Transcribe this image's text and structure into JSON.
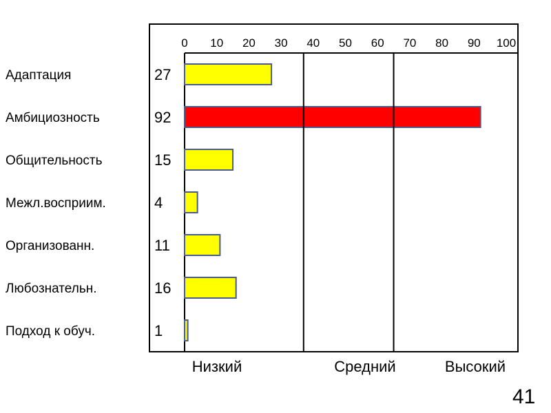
{
  "chart_data": {
    "type": "bar",
    "orientation": "horizontal",
    "categories": [
      "Адаптация",
      "Амбициозность",
      "Общительность",
      "Межл.восприим.",
      "Организованн.",
      "Любознательн.",
      "Подход к обуч."
    ],
    "values": [
      27,
      92,
      15,
      4,
      11,
      16,
      1
    ],
    "value_labels": [
      "27",
      "92",
      "15",
      "4",
      "11",
      "16",
      "1"
    ],
    "bar_colors": [
      "#ffff00",
      "#ff0000",
      "#ffff00",
      "#ffff00",
      "#ffff00",
      "#ffff00",
      "#ffff00"
    ],
    "bar_border_color": "#4a5a8a",
    "xlim": [
      0,
      100
    ],
    "x_ticks": [
      "0",
      "10",
      "20",
      "30",
      "40",
      "50",
      "60",
      "70",
      "80",
      "90",
      "100"
    ],
    "zones": [
      {
        "label": "Низкий",
        "from": 0,
        "to": 37
      },
      {
        "label": "Средний",
        "from": 37,
        "to": 65
      },
      {
        "label": "Высокий",
        "from": 65,
        "to": 100
      }
    ],
    "tick_position": "top",
    "grid": false
  },
  "page_number": "41"
}
